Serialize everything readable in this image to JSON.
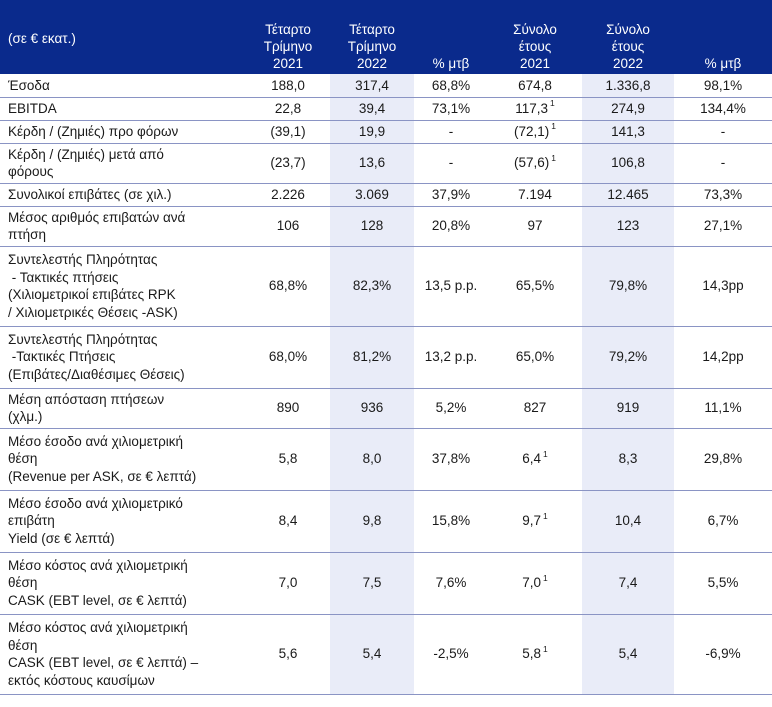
{
  "header": {
    "label_col": "(σε € εκατ.)",
    "columns": [
      [
        "Τέταρτο",
        "Τρίμηνο",
        "2021"
      ],
      [
        "Τέταρτο",
        "Τρίμηνο",
        "2022"
      ],
      [
        "% μτβ"
      ],
      [
        "Σύνολο",
        "έτους",
        "2021"
      ],
      [
        "Σύνολο",
        "έτους",
        "2022"
      ],
      [
        "% μτβ"
      ]
    ]
  },
  "footnote_mark": "1",
  "rows": [
    {
      "label": [
        "Έσοδα"
      ],
      "q2021": "188,0",
      "q2022": "317,4",
      "q_change": "68,8%",
      "y2021": "674,8",
      "y2021_note": false,
      "y2022": "1.336,8",
      "y_change": "98,1%"
    },
    {
      "label": [
        "EBITDA"
      ],
      "q2021": "22,8",
      "q2022": "39,4",
      "q_change": "73,1%",
      "y2021": "117,3",
      "y2021_note": true,
      "y2022": "274,9",
      "y_change": "134,4%"
    },
    {
      "label": [
        "Κέρδη / (Ζημιές) προ φόρων"
      ],
      "q2021": "(39,1)",
      "q2022": "19,9",
      "q_change": "-",
      "y2021": "(72,1)",
      "y2021_note": true,
      "y2022": "141,3",
      "y_change": "-"
    },
    {
      "label": [
        "Κέρδη / (Ζημιές) μετά από",
        "φόρους"
      ],
      "q2021": "(23,7)",
      "q2022": "13,6",
      "q_change": "-",
      "y2021": "(57,6)",
      "y2021_note": true,
      "y2022": "106,8",
      "y_change": "-"
    },
    {
      "label": [
        "Συνολικοί επιβάτες (σε χιλ.)"
      ],
      "q2021": "2.226",
      "q2022": "3.069",
      "q_change": "37,9%",
      "y2021": "7.194",
      "y2021_note": false,
      "y2022": "12.465",
      "y_change": "73,3%"
    },
    {
      "label": [
        "Μέσος αριθμός επιβατών ανά",
        "πτήση"
      ],
      "q2021": "106",
      "q2022": "128",
      "q_change": "20,8%",
      "y2021": "97",
      "y2021_note": false,
      "y2022": "123",
      "y_change": "27,1%"
    },
    {
      "label": [
        "Συντελεστής Πληρότητας",
        " - Τακτικές πτήσεις",
        "(Χιλιομετρικοί επιβάτες RPK",
        "/ Χιλιομετρικές Θέσεις -ASK)"
      ],
      "q2021": "68,8%",
      "q2022": "82,3%",
      "q_change": "13,5 p.p.",
      "y2021": "65,5%",
      "y2021_note": false,
      "y2022": "79,8%",
      "y_change": "14,3pp"
    },
    {
      "label": [
        "Συντελεστής Πληρότητας",
        " -Τακτικές Πτήσεις",
        "(Επιβάτες/Διαθέσιμες Θέσεις)"
      ],
      "q2021": "68,0%",
      "q2022": "81,2%",
      "q_change": "13,2 p.p.",
      "y2021": "65,0%",
      "y2021_note": false,
      "y2022": "79,2%",
      "y_change": "14,2pp"
    },
    {
      "label": [
        "Μέση απόσταση πτήσεων",
        "(χλμ.)"
      ],
      "q2021": "890",
      "q2022": "936",
      "q_change": "5,2%",
      "y2021": "827",
      "y2021_note": false,
      "y2022": "919",
      "y_change": "11,1%"
    },
    {
      "label": [
        "Μέσο έσοδο ανά χιλιομετρική",
        "θέση",
        "(Revenue per ASK, σε € λεπτά)"
      ],
      "q2021": "5,8",
      "q2022": "8,0",
      "q_change": "37,8%",
      "y2021": "6,4",
      "y2021_note": true,
      "y2022": "8,3",
      "y_change": "29,8%"
    },
    {
      "label": [
        "Μέσο έσοδο ανά χιλιομετρικό",
        "επιβάτη",
        "Yield (σε € λεπτά)"
      ],
      "q2021": "8,4",
      "q2022": "9,8",
      "q_change": "15,8%",
      "y2021": "9,7",
      "y2021_note": true,
      "y2022": "10,4",
      "y_change": "6,7%"
    },
    {
      "label": [
        "Μέσο κόστος ανά χιλιομετρική",
        "θέση",
        "CASK (EBT level, σε € λεπτά)"
      ],
      "q2021": "7,0",
      "q2022": "7,5",
      "q_change": "7,6%",
      "y2021": "7,0",
      "y2021_note": true,
      "y2022": "7,4",
      "y_change": "5,5%"
    },
    {
      "label": [
        "Μέσο κόστος ανά χιλιομετρική",
        "θέση",
        "CASK (EBT level, σε € λεπτά) –",
        "εκτός κόστους καυσίμων"
      ],
      "q2021": "5,6",
      "q2022": "5,4",
      "q_change": "-2,5%",
      "y2021": "5,8",
      "y2021_note": true,
      "y2022": "5,4",
      "y_change": "-6,9%"
    }
  ]
}
